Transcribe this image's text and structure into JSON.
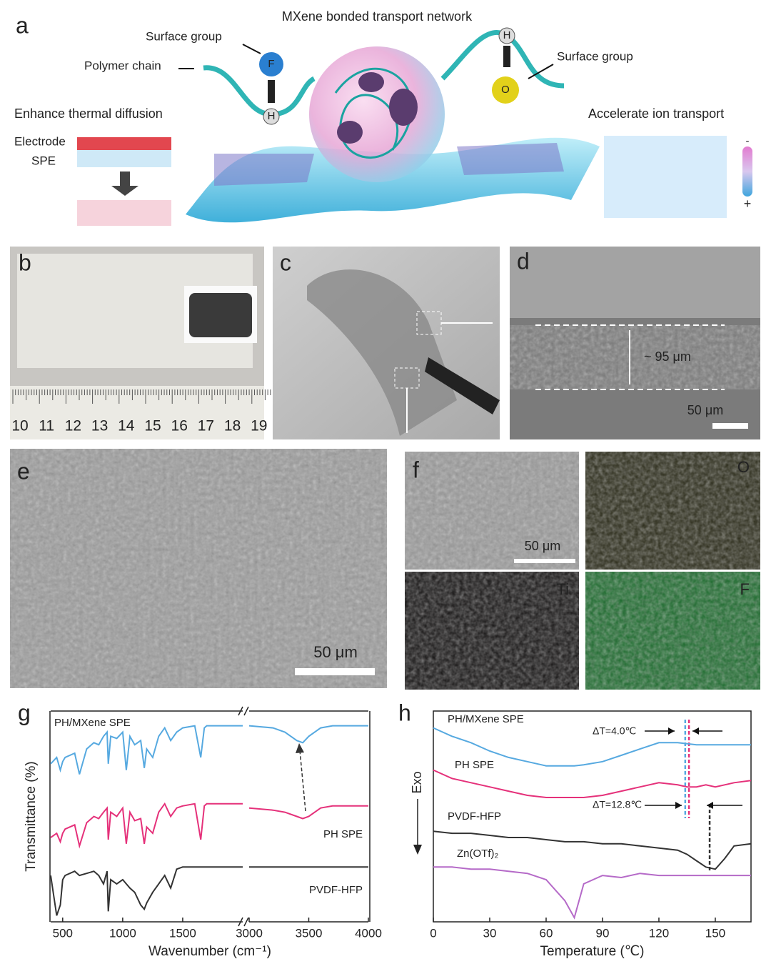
{
  "panel_a": {
    "label": "a",
    "title": "MXene bonded transport network",
    "surface_group_left": "Surface group",
    "polymer_chain": "Polymer chain",
    "surface_group_right": "Surface group",
    "left_caption": "Enhance thermal diffusion",
    "electrode": "Electrode",
    "spe": "SPE",
    "right_caption": "Accelerate ion transport",
    "atoms": [
      "F",
      "H",
      "H",
      "O"
    ],
    "scale_signs": [
      "-",
      "+"
    ]
  },
  "panel_b": {
    "label": "b",
    "ruler": [
      10,
      11,
      12,
      13,
      14,
      15,
      16,
      17,
      18,
      19
    ]
  },
  "panel_c": {
    "label": "c"
  },
  "panel_d": {
    "label": "d",
    "thickness": "~ 95 μm",
    "scale_bar": "50 μm"
  },
  "panel_e": {
    "label": "e",
    "scale_bar": "50 μm"
  },
  "panel_f": {
    "label": "f",
    "scale_bar": "50 μm",
    "maps": [
      "O",
      "Ti",
      "F"
    ]
  },
  "chart_data": [
    {
      "type": "line",
      "label": "g",
      "ylabel": "Transmittance (%)",
      "xlabel": "Wavenumber (cm⁻¹)",
      "x": [
        400,
        450,
        480,
        500,
        520,
        600,
        640,
        700,
        760,
        800,
        840,
        870,
        880,
        900,
        950,
        1000,
        1030,
        1060,
        1100,
        1150,
        1180,
        1200,
        1250,
        1300,
        1350,
        1400,
        1450,
        1500,
        1600,
        1650,
        1680,
        1700,
        1800,
        1900,
        2000,
        3000,
        3200,
        3300,
        3400,
        3450,
        3500,
        3600,
        3700,
        4000
      ],
      "xlim_segments": [
        [
          400,
          2000
        ],
        [
          3000,
          4000
        ]
      ],
      "xticks": [
        500,
        1000,
        1500,
        3000,
        3500,
        4000
      ],
      "ylim": [
        0,
        100
      ],
      "series": [
        {
          "name": "PH/MXene SPE",
          "color": "#56a9e0",
          "values": [
            75,
            78,
            72,
            76,
            78,
            80,
            70,
            82,
            85,
            84,
            88,
            90,
            75,
            88,
            87,
            90,
            72,
            88,
            84,
            86,
            73,
            82,
            78,
            88,
            92,
            86,
            90,
            92,
            93,
            78,
            92,
            93,
            93,
            93,
            93,
            93,
            92,
            90,
            86,
            85,
            88,
            92,
            93,
            93
          ]
        },
        {
          "name": "PH SPE",
          "color": "#e5317a",
          "values": [
            40,
            42,
            38,
            42,
            44,
            46,
            36,
            47,
            50,
            49,
            52,
            54,
            39,
            52,
            50,
            54,
            37,
            52,
            48,
            49,
            37,
            45,
            42,
            52,
            56,
            50,
            54,
            55,
            56,
            39,
            55,
            56,
            56,
            56,
            56,
            54,
            53,
            52,
            50,
            49,
            50,
            54,
            55,
            55
          ]
        },
        {
          "name": "PVDF-HFP",
          "color": "#333333",
          "values": [
            22,
            3,
            8,
            20,
            22,
            24,
            22,
            23,
            24,
            22,
            18,
            24,
            5,
            20,
            18,
            20,
            18,
            16,
            14,
            8,
            6,
            9,
            14,
            18,
            22,
            16,
            25,
            26,
            26,
            26,
            26,
            26,
            26,
            26,
            26,
            26,
            26,
            26,
            26,
            26,
            26,
            26,
            26,
            26
          ]
        }
      ]
    },
    {
      "type": "line",
      "label": "h",
      "ylabel": "Exo",
      "xlabel": "Temperature (℃)",
      "x": [
        0,
        10,
        20,
        30,
        40,
        50,
        60,
        70,
        75,
        80,
        90,
        100,
        110,
        120,
        130,
        135,
        140,
        145,
        150,
        155,
        160,
        169
      ],
      "xlim": [
        0,
        169
      ],
      "xticks": [
        0,
        30,
        60,
        90,
        120,
        150
      ],
      "ylim": [
        0,
        100
      ],
      "series": [
        {
          "name": "PH/MXene SPE",
          "color": "#56a9e0",
          "values": [
            92,
            88,
            85,
            81,
            78,
            76,
            74,
            74,
            74,
            74.5,
            76,
            79,
            82,
            85,
            85,
            84.5,
            84,
            84,
            84,
            84,
            84,
            84
          ]
        },
        {
          "name": "PH SPE",
          "color": "#e5317a",
          "values": [
            72,
            68,
            66,
            64,
            62,
            60,
            59,
            59,
            59,
            59,
            60,
            62,
            64,
            66,
            65,
            64,
            64,
            65,
            64,
            65,
            66,
            67
          ]
        },
        {
          "name": "PVDF-HFP",
          "color": "#333333",
          "values": [
            43,
            42,
            42,
            41,
            40,
            40,
            39,
            38,
            38,
            38,
            37,
            37,
            36,
            35,
            34,
            32,
            29,
            26,
            25,
            30,
            36,
            37
          ]
        },
        {
          "name": "Zn(OTf)₂",
          "color": "#b56ac8",
          "values": [
            26,
            26,
            25,
            25,
            24,
            23,
            20,
            10,
            2,
            18,
            22,
            21,
            23,
            22,
            22,
            22,
            22,
            22,
            22,
            22,
            22,
            22
          ]
        }
      ],
      "markers": [
        {
          "x": 134,
          "color": "#56a9e0"
        },
        {
          "x": 136,
          "color": "#e5317a"
        },
        {
          "x": 147,
          "color": "#333333"
        }
      ],
      "annotations": [
        "ΔT=4.0℃",
        "ΔT=12.8℃"
      ]
    }
  ]
}
